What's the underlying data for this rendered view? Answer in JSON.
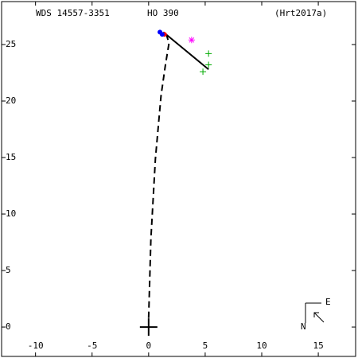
{
  "chart_data": {
    "type": "scatter",
    "title": "WDS 14557-3351",
    "subtitle": "HO  390",
    "reference": "(Hrt2017a)",
    "xlim": [
      -13,
      18.3
    ],
    "ylim": [
      -2.6,
      28.8
    ],
    "xticks": [
      -10,
      -5,
      0,
      5,
      10,
      15
    ],
    "yticks": [
      0,
      5,
      10,
      15,
      20,
      25
    ],
    "compass": {
      "east": "E",
      "north": "N"
    },
    "series": [
      {
        "style": "dashed",
        "color": "#000000",
        "x": [
          0,
          0.2,
          0.6,
          1.1,
          1.5,
          1.8,
          1.6
        ],
        "values": [
          0.8,
          7.8,
          14.9,
          20.5,
          23.3,
          25.1,
          25.8
        ]
      },
      {
        "style": "solid",
        "color": "#000000",
        "x": [
          1.3,
          5.3
        ],
        "values": [
          26.1,
          22.8
        ]
      },
      {
        "style": "plus",
        "color": "#00aa00",
        "x": [
          4.8,
          5.3,
          5.3
        ],
        "values": [
          22.6,
          23.2,
          24.2
        ]
      },
      {
        "style": "asterisk",
        "color": "#ff00ff",
        "x": [
          3.8
        ],
        "values": [
          25.4
        ]
      },
      {
        "style": "dot",
        "color": "#ff0000",
        "x": [
          1.4
        ],
        "values": [
          25.9
        ]
      },
      {
        "style": "dot",
        "color": "#0000ff",
        "x": [
          1.0,
          1.2
        ],
        "values": [
          26.1,
          25.9
        ]
      },
      {
        "style": "bigplus",
        "color": "#000000",
        "x": [
          0
        ],
        "values": [
          0
        ]
      }
    ]
  }
}
